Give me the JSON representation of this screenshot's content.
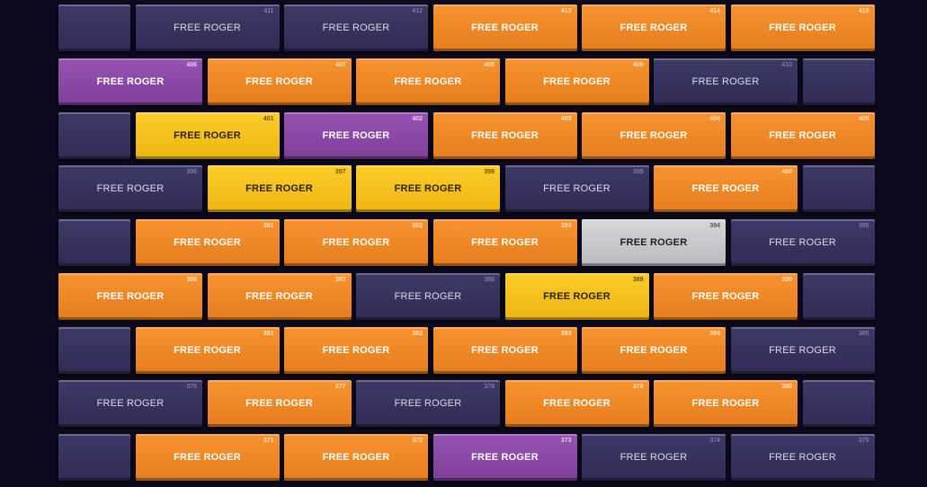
{
  "wall": {
    "rows": [
      [
        {
          "color": "navy"
        },
        {
          "label": "FREE ROGER",
          "number": 411,
          "color": "navy"
        },
        {
          "label": "FREE ROGER",
          "number": 412,
          "color": "navy"
        },
        {
          "label": "FREE ROGER",
          "number": 413,
          "color": "orange"
        },
        {
          "label": "FREE ROGER",
          "number": 414,
          "color": "orange"
        },
        {
          "label": "FREE ROGER",
          "number": 415,
          "color": "orange"
        }
      ],
      [
        {
          "label": "FREE ROGER",
          "number": 406,
          "color": "purple"
        },
        {
          "label": "FREE ROGER",
          "number": 407,
          "color": "orange"
        },
        {
          "label": "FREE ROGER",
          "number": 408,
          "color": "orange"
        },
        {
          "label": "FREE ROGER",
          "number": 409,
          "color": "orange"
        },
        {
          "label": "FREE ROGER",
          "number": 410,
          "color": "navy"
        },
        {
          "color": "navy"
        }
      ],
      [
        {
          "color": "navy"
        },
        {
          "label": "FREE ROGER",
          "number": 401,
          "color": "yellow"
        },
        {
          "label": "FREE ROGER",
          "number": 402,
          "color": "purple"
        },
        {
          "label": "FREE ROGER",
          "number": 403,
          "color": "orange"
        },
        {
          "label": "FREE ROGER",
          "number": 404,
          "color": "orange"
        },
        {
          "label": "FREE ROGER",
          "number": 405,
          "color": "orange"
        }
      ],
      [
        {
          "label": "FREE ROGER",
          "number": 396,
          "color": "navy"
        },
        {
          "label": "FREE ROGER",
          "number": 397,
          "color": "yellow"
        },
        {
          "label": "FREE ROGER",
          "number": 398,
          "color": "yellow"
        },
        {
          "label": "FREE ROGER",
          "number": 399,
          "color": "navy"
        },
        {
          "label": "FREE ROGER",
          "number": 400,
          "color": "orange"
        },
        {
          "color": "navy"
        }
      ],
      [
        {
          "color": "navy"
        },
        {
          "label": "FREE ROGER",
          "number": 391,
          "color": "orange"
        },
        {
          "label": "FREE ROGER",
          "number": 392,
          "color": "orange"
        },
        {
          "label": "FREE ROGER",
          "number": 393,
          "color": "orange"
        },
        {
          "label": "FREE ROGER",
          "number": 394,
          "color": "silver"
        },
        {
          "label": "FREE ROGER",
          "number": 395,
          "color": "navy"
        }
      ],
      [
        {
          "label": "FREE ROGER",
          "number": 386,
          "color": "orange"
        },
        {
          "label": "FREE ROGER",
          "number": 387,
          "color": "orange"
        },
        {
          "label": "FREE ROGER",
          "number": 388,
          "color": "navy"
        },
        {
          "label": "FREE ROGER",
          "number": 389,
          "color": "yellow"
        },
        {
          "label": "FREE ROGER",
          "number": 390,
          "color": "orange"
        },
        {
          "color": "navy"
        }
      ],
      [
        {
          "color": "navy"
        },
        {
          "label": "FREE ROGER",
          "number": 381,
          "color": "orange"
        },
        {
          "label": "FREE ROGER",
          "number": 382,
          "color": "orange"
        },
        {
          "label": "FREE ROGER",
          "number": 383,
          "color": "orange"
        },
        {
          "label": "FREE ROGER",
          "number": 384,
          "color": "orange"
        },
        {
          "label": "FREE ROGER",
          "number": 385,
          "color": "navy"
        }
      ],
      [
        {
          "label": "FREE ROGER",
          "number": 376,
          "color": "navy"
        },
        {
          "label": "FREE ROGER",
          "number": 377,
          "color": "orange"
        },
        {
          "label": "FREE ROGER",
          "number": 378,
          "color": "navy"
        },
        {
          "label": "FREE ROGER",
          "number": 379,
          "color": "orange"
        },
        {
          "label": "FREE ROGER",
          "number": 380,
          "color": "orange"
        },
        {
          "color": "navy"
        }
      ],
      [
        {
          "color": "navy"
        },
        {
          "label": "FREE ROGER",
          "number": 371,
          "color": "orange"
        },
        {
          "label": "FREE ROGER",
          "number": 372,
          "color": "orange"
        },
        {
          "label": "FREE ROGER",
          "number": 373,
          "color": "purple"
        },
        {
          "label": "FREE ROGER",
          "number": 374,
          "color": "navy"
        },
        {
          "label": "FREE ROGER",
          "number": 375,
          "color": "navy"
        }
      ]
    ]
  }
}
